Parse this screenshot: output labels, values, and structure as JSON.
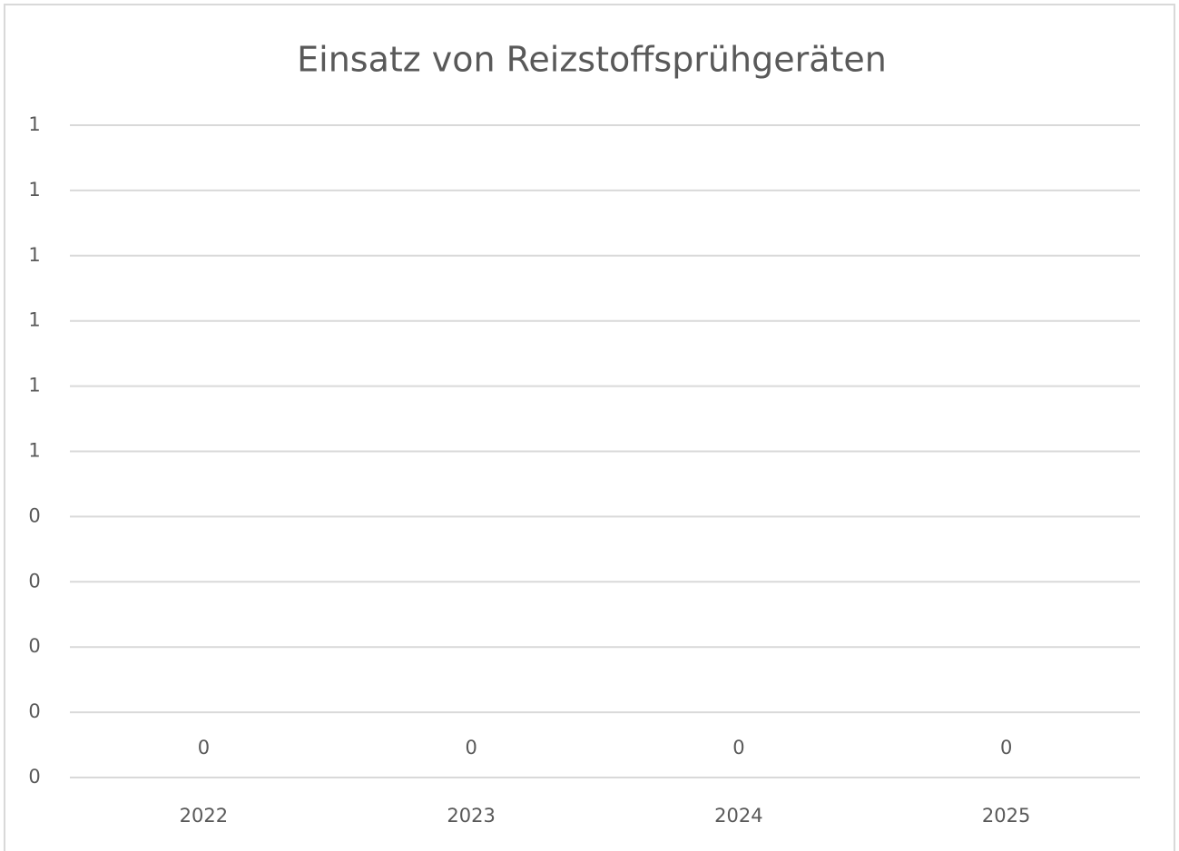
{
  "chart_data": {
    "type": "bar",
    "title": "Einsatz von Reizstoffsprühgeräten",
    "categories": [
      "2022",
      "2023",
      "2024",
      "2025"
    ],
    "values": [
      0,
      0,
      0,
      0
    ],
    "color": "#4472c4",
    "ylim": [
      0,
      1
    ],
    "yticks": [
      0,
      {
        "value": 0.1,
        "label": "0"
      },
      {
        "value": 0.2,
        "label": "0"
      },
      {
        "value": 0.3,
        "label": "0"
      },
      {
        "value": 0.4,
        "label": "0"
      },
      {
        "value": 0.5,
        "label": "1"
      },
      {
        "value": 0.6,
        "label": "1"
      },
      {
        "value": 0.7,
        "label": "1"
      },
      {
        "value": 0.8,
        "label": "1"
      },
      {
        "value": 0.9,
        "label": "1"
      },
      1
    ],
    "grid": true
  }
}
